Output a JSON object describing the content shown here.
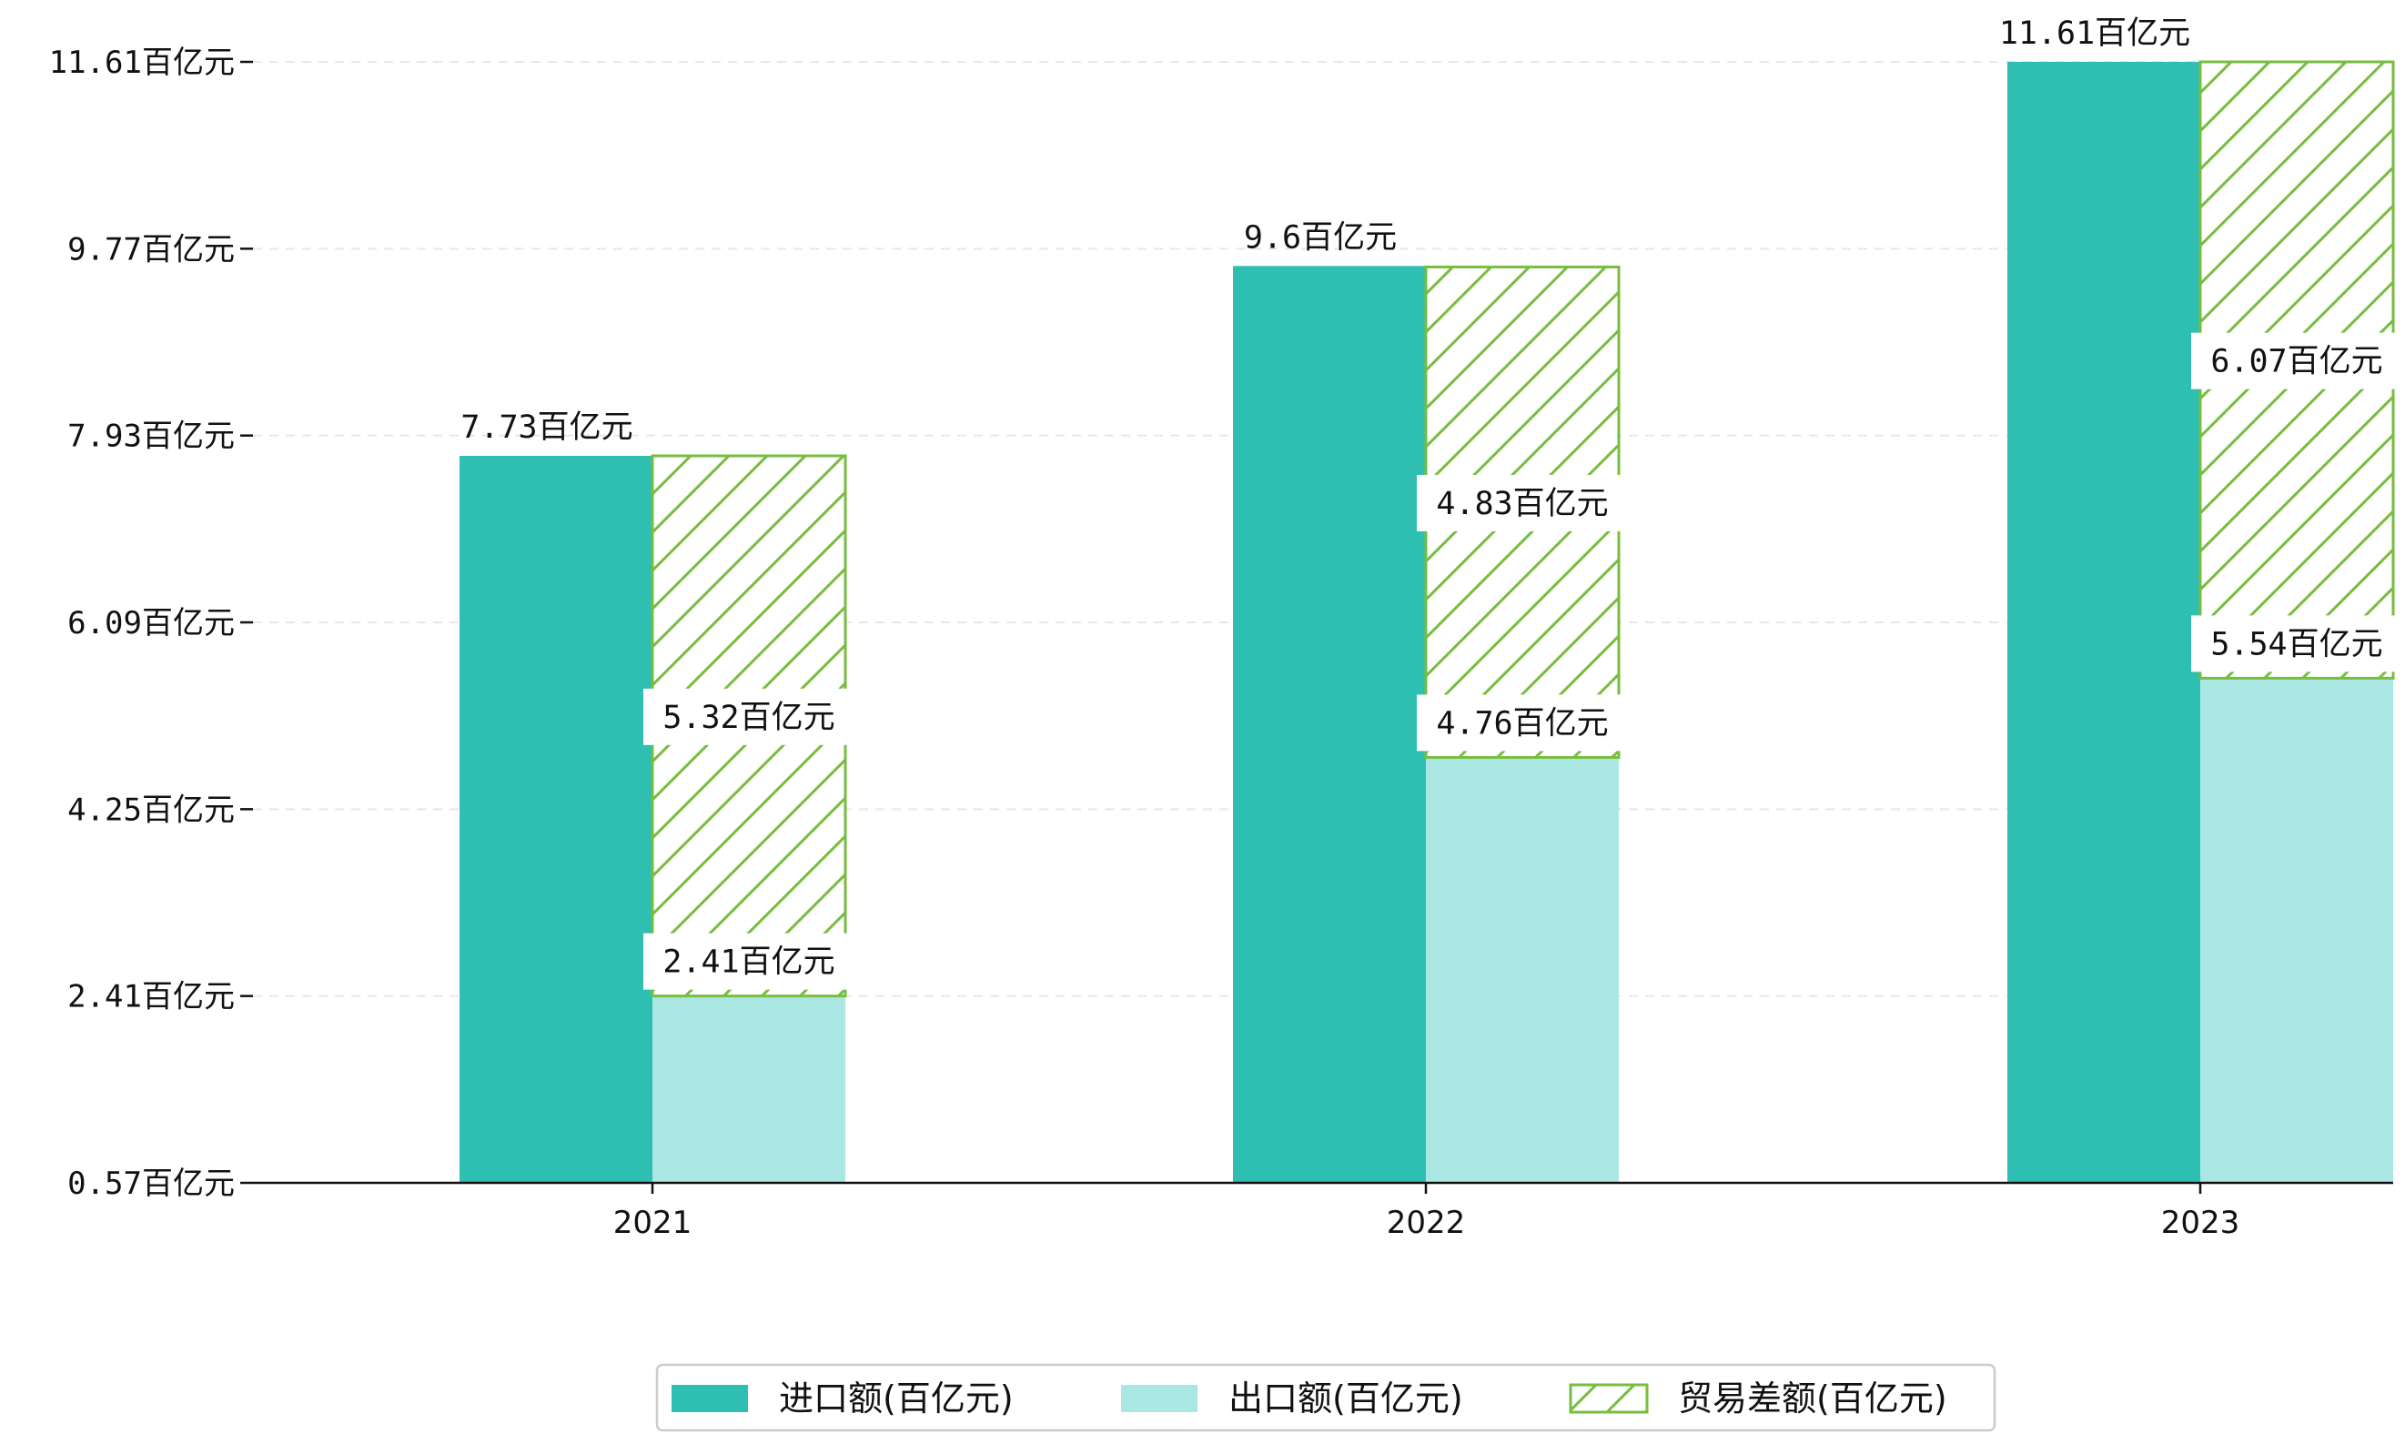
{
  "chart_data": {
    "type": "bar",
    "categories": [
      "2021",
      "2022",
      "2023"
    ],
    "series": [
      {
        "name": "进口额(百亿元)",
        "values": [
          7.73,
          9.6,
          11.61
        ],
        "labels": [
          "7.73百亿元",
          "9.6百亿元",
          "11.61百亿元"
        ],
        "color": "#2fbfb2",
        "stack": "import"
      },
      {
        "name": "出口额(百亿元)",
        "values": [
          2.41,
          4.76,
          5.54
        ],
        "labels": [
          "2.41百亿元",
          "4.76百亿元",
          "5.54百亿元"
        ],
        "color": "#abe7e2",
        "stack": "trade"
      },
      {
        "name": "贸易差额(百亿元)",
        "values": [
          5.32,
          4.83,
          6.07
        ],
        "labels": [
          "5.32百亿元",
          "4.83百亿元",
          "6.07百亿元"
        ],
        "color": "#77bd3f",
        "pattern": "hatch",
        "stack": "trade"
      }
    ],
    "y_ticks": [
      "0.57百亿元",
      "2.41百亿元",
      "4.25百亿元",
      "6.09百亿元",
      "7.93百亿元",
      "9.77百亿元",
      "11.61百亿元"
    ],
    "y_tick_values": [
      0.57,
      2.41,
      4.25,
      6.09,
      7.93,
      9.77,
      11.61
    ],
    "ylim": [
      0.57,
      11.61
    ],
    "grid": "horizontal-dashed",
    "legend_position": "bottom-center"
  }
}
